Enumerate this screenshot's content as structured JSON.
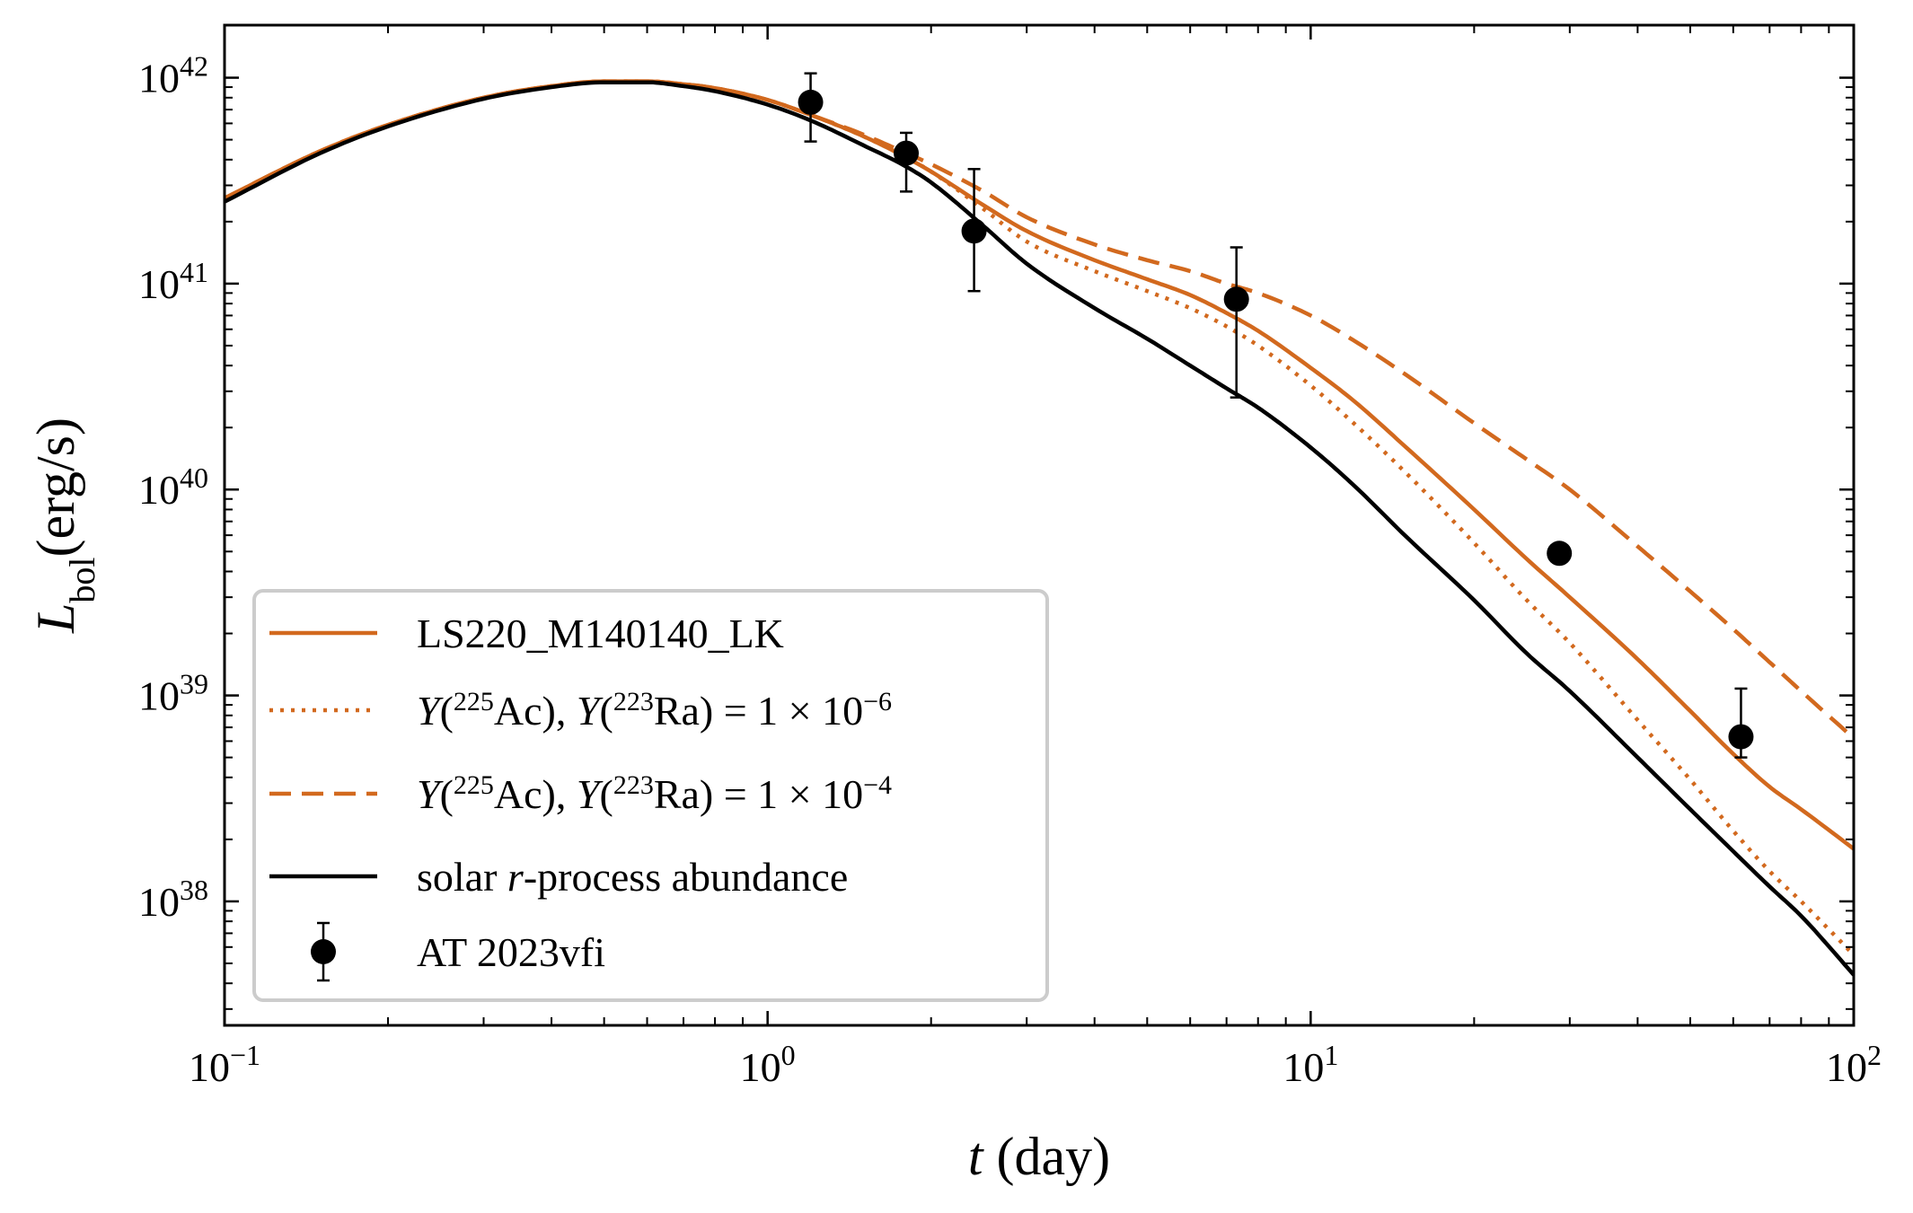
{
  "chart_data": {
    "type": "line",
    "title": "",
    "xlabel": {
      "var": "t",
      "rest": " (day)"
    },
    "ylabel": {
      "var": "L",
      "sub": "bol",
      "rest": "(erg/s)"
    },
    "xscale": "log",
    "yscale": "log",
    "xlim": [
      0.1,
      100
    ],
    "ylim": [
      2.5e+37,
      1.8e+42
    ],
    "grid": false,
    "legend_position": "lower-left",
    "x_ticks": [
      {
        "value": 0.1,
        "base": "10",
        "exp": "−1"
      },
      {
        "value": 1,
        "base": "10",
        "exp": "0"
      },
      {
        "value": 10,
        "base": "10",
        "exp": "1"
      },
      {
        "value": 100,
        "base": "10",
        "exp": "2"
      }
    ],
    "y_ticks": [
      {
        "value": 1e+38,
        "base": "10",
        "exp": "38"
      },
      {
        "value": 1e+39,
        "base": "10",
        "exp": "39"
      },
      {
        "value": 1e+40,
        "base": "10",
        "exp": "40"
      },
      {
        "value": 1e+41,
        "base": "10",
        "exp": "41"
      },
      {
        "value": 1e+42,
        "base": "10",
        "exp": "42"
      }
    ],
    "series": [
      {
        "name": "LS220_M140140_LK",
        "color": "#d2691e",
        "style": "solid",
        "x": [
          0.1,
          0.15,
          0.2,
          0.3,
          0.4,
          0.5,
          0.6,
          0.7,
          0.8,
          1.0,
          1.2,
          1.5,
          1.8,
          2.0,
          2.5,
          3.0,
          4.0,
          5.0,
          6.0,
          7.0,
          8.0,
          10,
          12,
          15,
          20,
          25,
          30,
          40,
          50,
          60,
          70,
          80,
          100
        ],
        "y": [
          2.6e+41,
          4.4e+41,
          5.9e+41,
          8e+41,
          9.1e+41,
          9.6e+41,
          9.6e+41,
          9.3e+41,
          8.9e+41,
          7.8e+41,
          6.6e+41,
          5.2e+41,
          4.1e+41,
          3.5e+41,
          2.4e+41,
          1.8e+41,
          1.3e+41,
          1.05e+41,
          8.8e+40,
          7.2e+40,
          5.9e+40,
          3.9e+40,
          2.7e+40,
          1.6e+40,
          8e+39,
          4.6e+39,
          3e+39,
          1.5e+39,
          8.4e+38,
          5.2e+38,
          3.6e+38,
          2.8e+38,
          1.8e+38
        ]
      },
      {
        "name": "Y(225Ac), Y(223Ra) = 1 × 10^−6",
        "color": "#d2691e",
        "style": "dotted",
        "x": [
          0.1,
          0.15,
          0.2,
          0.3,
          0.4,
          0.5,
          0.6,
          0.7,
          0.8,
          1.0,
          1.2,
          1.5,
          1.8,
          2.0,
          2.5,
          3.0,
          4.0,
          5.0,
          6.0,
          7.0,
          8.0,
          10,
          12,
          15,
          20,
          25,
          30,
          40,
          50,
          60,
          70,
          80,
          100
        ],
        "y": [
          2.6e+41,
          4.4e+41,
          5.9e+41,
          8e+41,
          9.1e+41,
          9.6e+41,
          9.6e+41,
          9.3e+41,
          8.9e+41,
          7.8e+41,
          6.6e+41,
          5.2e+41,
          4.1e+41,
          3.5e+41,
          2.3e+41,
          1.6e+41,
          1.15e+41,
          9.2e+40,
          7.6e+40,
          6.2e+40,
          5e+40,
          3.2e+40,
          2.1e+40,
          1.2e+40,
          5.5e+39,
          2.9e+39,
          1.8e+39,
          7.6e+38,
          3.9e+38,
          2.2e+38,
          1.4e+38,
          1e+38,
          5.5e+37
        ]
      },
      {
        "name": "Y(225Ac), Y(223Ra) = 1 × 10^−4",
        "color": "#d2691e",
        "style": "dashed",
        "x": [
          0.1,
          0.15,
          0.2,
          0.3,
          0.4,
          0.5,
          0.6,
          0.7,
          0.8,
          1.0,
          1.2,
          1.5,
          1.8,
          2.0,
          2.5,
          3.0,
          4.0,
          5.0,
          6.0,
          7.0,
          8.0,
          10,
          12,
          15,
          20,
          25,
          30,
          40,
          50,
          60,
          70,
          80,
          100
        ],
        "y": [
          2.6e+41,
          4.4e+41,
          5.9e+41,
          8e+41,
          9.1e+41,
          9.6e+41,
          9.6e+41,
          9.3e+41,
          8.9e+41,
          7.8e+41,
          6.6e+41,
          5.3e+41,
          4.3e+41,
          3.8e+41,
          2.8e+41,
          2.1e+41,
          1.55e+41,
          1.3e+41,
          1.15e+41,
          1e+41,
          9e+40,
          7e+40,
          5.3e+40,
          3.6e+40,
          2.1e+40,
          1.4e+40,
          1e+40,
          5.3e+39,
          3.2e+39,
          2.1e+39,
          1.45e+39,
          1.05e+39,
          6.2e+38
        ]
      },
      {
        "name": "solar r-process abundance",
        "color": "#000000",
        "style": "solid",
        "x": [
          0.1,
          0.15,
          0.2,
          0.3,
          0.4,
          0.5,
          0.6,
          0.7,
          0.8,
          1.0,
          1.2,
          1.5,
          1.8,
          2.0,
          2.5,
          3.0,
          4.0,
          5.0,
          6.0,
          7.0,
          8.0,
          10,
          12,
          15,
          20,
          25,
          30,
          40,
          50,
          60,
          70,
          80,
          100
        ],
        "y": [
          2.5e+41,
          4.3e+41,
          5.8e+41,
          7.9e+41,
          9e+41,
          9.5e+41,
          9.5e+41,
          9.1e+41,
          8.6e+41,
          7.4e+41,
          6.2e+41,
          4.7e+41,
          3.7e+41,
          3.1e+41,
          1.9e+41,
          1.25e+41,
          7.6e+40,
          5.4e+40,
          4e+40,
          3.1e+40,
          2.5e+40,
          1.6e+40,
          1.05e+40,
          5.9e+39,
          2.9e+39,
          1.6e+39,
          1.05e+39,
          5e+38,
          2.8e+38,
          1.75e+38,
          1.18e+38,
          8.5e+37,
          4.4e+37
        ]
      }
    ],
    "observations": {
      "name": "AT 2023vfi",
      "color": "#000000",
      "points": [
        {
          "x": 1.2,
          "y": 7.6e+41,
          "yerr_low": 4.9e+41,
          "yerr_high": 1.05e+42
        },
        {
          "x": 1.8,
          "y": 4.3e+41,
          "yerr_low": 2.8e+41,
          "yerr_high": 5.4e+41
        },
        {
          "x": 2.4,
          "y": 1.8e+41,
          "yerr_low": 9.2e+40,
          "yerr_high": 3.6e+41
        },
        {
          "x": 7.3,
          "y": 8.4e+40,
          "yerr_low": 2.8e+40,
          "yerr_high": 1.5e+41
        },
        {
          "x": 28.7,
          "y": 4.9e+39,
          "yerr_low": null,
          "yerr_high": null
        },
        {
          "x": 62,
          "y": 6.3e+38,
          "yerr_low": 5e+38,
          "yerr_high": 1.08e+39
        }
      ]
    },
    "legend_entries": [
      {
        "kind": "line",
        "style": "solid",
        "color": "#d2691e",
        "text": "LS220_M140140_LK"
      },
      {
        "kind": "line",
        "style": "dotted",
        "color": "#d2691e",
        "parts": [
          {
            "t": "Y",
            "i": true
          },
          {
            "t": "("
          },
          {
            "t": "225",
            "sup": true
          },
          {
            "t": "Ac), "
          },
          {
            "t": "Y",
            "i": true
          },
          {
            "t": "("
          },
          {
            "t": "223",
            "sup": true
          },
          {
            "t": "Ra) = 1 × 10"
          },
          {
            "t": "−6",
            "sup": true
          }
        ]
      },
      {
        "kind": "line",
        "style": "dashed",
        "color": "#d2691e",
        "parts": [
          {
            "t": "Y",
            "i": true
          },
          {
            "t": "("
          },
          {
            "t": "225",
            "sup": true
          },
          {
            "t": "Ac), "
          },
          {
            "t": "Y",
            "i": true
          },
          {
            "t": "("
          },
          {
            "t": "223",
            "sup": true
          },
          {
            "t": "Ra) = 1 × 10"
          },
          {
            "t": "−4",
            "sup": true
          }
        ]
      },
      {
        "kind": "line",
        "style": "solid",
        "color": "#000000",
        "parts": [
          {
            "t": "solar "
          },
          {
            "t": "r",
            "i": true
          },
          {
            "t": "-process abundance"
          }
        ]
      },
      {
        "kind": "marker",
        "color": "#000000",
        "text": "AT 2023vfi"
      }
    ]
  }
}
